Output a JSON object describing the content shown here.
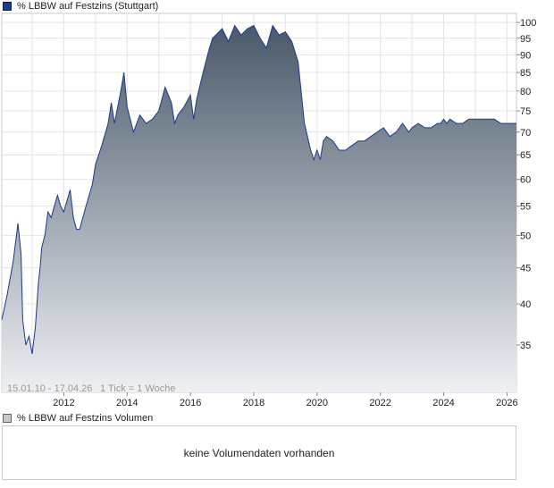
{
  "legend_main": {
    "label": "%  LBBW auf Festzins (Stuttgart)",
    "color": "#1a3a8c"
  },
  "legend_volume": {
    "label": "%  LBBW auf Festzins Volumen",
    "color": "#c8c8c8"
  },
  "volume_panel": {
    "message": "keine Volumendaten vorhanden"
  },
  "chart_data": {
    "type": "area",
    "range_label": "15.01.10 - 17.04.26",
    "tick_label": "1 Tick = 1 Woche",
    "x_tick_labels": [
      "2012",
      "2014",
      "2016",
      "2018",
      "2020",
      "2022",
      "2024",
      "2026"
    ],
    "y_tick_labels": [
      "35",
      "40",
      "45",
      "50",
      "55",
      "60",
      "65",
      "70",
      "75",
      "80",
      "85",
      "90",
      "95",
      "100"
    ],
    "y_scale": "log",
    "ylim": [
      30,
      103
    ],
    "xlim": [
      2010.04,
      2026.3
    ],
    "grid": true,
    "line_color": "#1a3a8c",
    "fill_top_color": "#4a5a6a",
    "fill_bottom_color": "#eef0f4",
    "series": [
      {
        "x": [
          2010.04,
          2010.2,
          2010.4,
          2010.55,
          2010.65,
          2010.7,
          2010.8,
          2010.9,
          2011.0,
          2011.1,
          2011.2,
          2011.25,
          2011.3,
          2011.4,
          2011.5,
          2011.6,
          2011.7,
          2011.8,
          2011.9,
          2012.0,
          2012.1,
          2012.2,
          2012.3,
          2012.4,
          2012.5,
          2012.7,
          2012.9,
          2013.0,
          2013.2,
          2013.4,
          2013.5,
          2013.6,
          2013.8,
          2013.9,
          2014.0,
          2014.2,
          2014.4,
          2014.6,
          2014.8,
          2015.0,
          2015.2,
          2015.3,
          2015.4,
          2015.5,
          2015.6,
          2015.8,
          2016.0,
          2016.1,
          2016.2,
          2016.4,
          2016.6,
          2016.7,
          2016.8,
          2017.0,
          2017.2,
          2017.4,
          2017.6,
          2017.8,
          2018.0,
          2018.2,
          2018.4,
          2018.6,
          2018.8,
          2019.0,
          2019.2,
          2019.4,
          2019.6,
          2019.8,
          2019.9,
          2020.0,
          2020.1,
          2020.2,
          2020.3,
          2020.5,
          2020.7,
          2020.9,
          2021.1,
          2021.3,
          2021.5,
          2021.7,
          2021.9,
          2022.1,
          2022.3,
          2022.5,
          2022.6,
          2022.7,
          2022.8,
          2022.9,
          2023.0,
          2023.2,
          2023.4,
          2023.6,
          2023.8,
          2023.9,
          2024.0,
          2024.1,
          2024.2,
          2024.4,
          2024.6,
          2024.8,
          2025.0,
          2025.2,
          2025.4,
          2025.6,
          2025.8,
          2026.0,
          2026.15,
          2026.3
        ],
        "y": [
          38,
          41,
          46,
          52,
          47,
          38,
          35,
          36,
          34,
          37,
          43,
          45,
          48,
          50,
          54,
          53,
          55,
          57,
          55,
          54,
          56,
          58,
          53,
          51,
          51,
          55,
          59,
          63,
          67,
          72,
          77,
          72,
          80,
          85,
          76,
          70,
          74,
          72,
          73,
          75,
          81,
          79,
          77,
          72,
          74,
          76,
          79,
          73,
          78,
          85,
          92,
          95,
          96,
          98,
          94,
          99,
          96,
          98,
          99,
          95,
          92,
          99,
          96,
          97,
          94,
          88,
          72,
          66,
          64,
          66,
          64,
          68,
          69,
          68,
          66,
          66,
          67,
          68,
          68,
          69,
          70,
          71,
          69,
          70,
          71,
          72,
          71,
          70,
          71,
          72,
          71,
          71,
          72,
          72,
          73,
          72,
          73,
          72,
          72,
          73,
          73,
          73,
          73,
          73,
          72,
          72,
          72,
          72
        ]
      }
    ]
  }
}
